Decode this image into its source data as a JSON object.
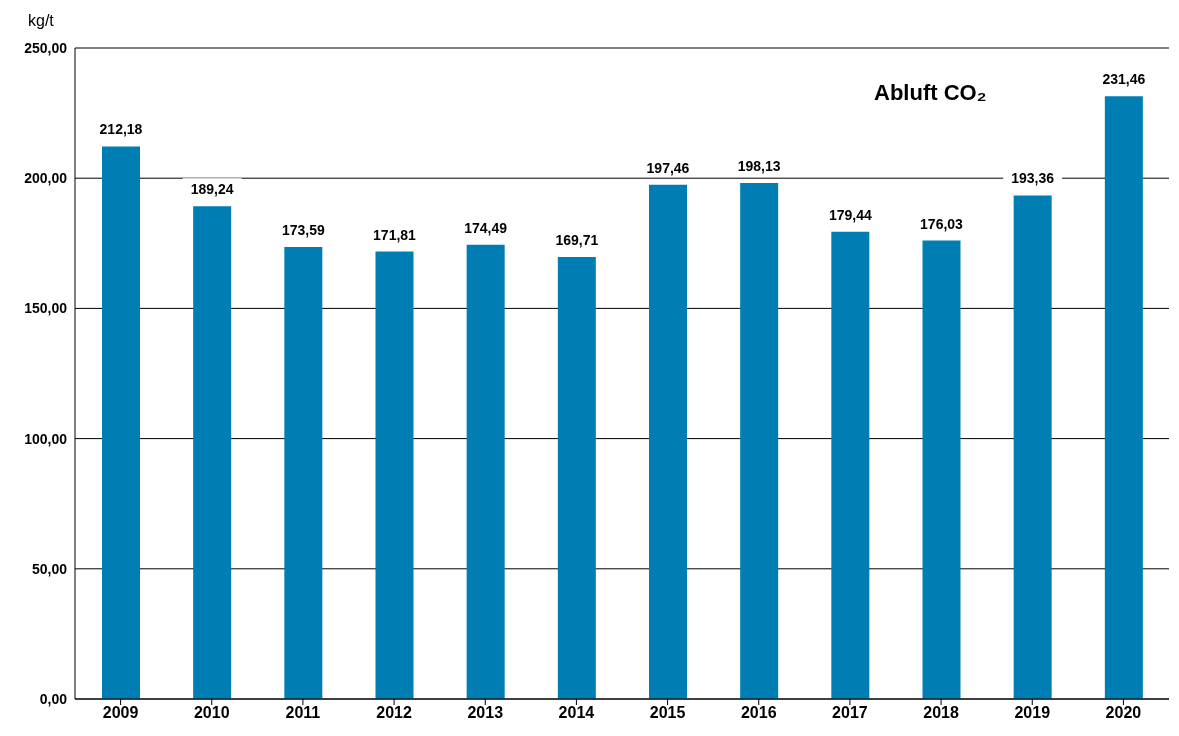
{
  "chart_data": {
    "type": "bar",
    "title": "Abluft CO₂",
    "ylabel": "kg/t",
    "categories": [
      "2009",
      "2010",
      "2011",
      "2012",
      "2013",
      "2014",
      "2015",
      "2016",
      "2017",
      "2018",
      "2019",
      "2020"
    ],
    "values": [
      212.18,
      189.24,
      173.59,
      171.81,
      174.49,
      169.71,
      197.46,
      198.13,
      179.44,
      176.03,
      193.36,
      231.46
    ],
    "value_labels": [
      "212,18",
      "189,24",
      "173,59",
      "171,81",
      "174,49",
      "169,71",
      "197,46",
      "198,13",
      "179,44",
      "176,03",
      "193,36",
      "231,46"
    ],
    "color": "#007db3",
    "ylim": [
      0,
      250
    ],
    "yticks": [
      {
        "value": 0,
        "label": "0,00"
      },
      {
        "value": 50,
        "label": "50,00"
      },
      {
        "value": 100,
        "label": "100,00"
      },
      {
        "value": 150,
        "label": "150,00"
      },
      {
        "value": 200,
        "label": "200,00"
      },
      {
        "value": 250,
        "label": "250,00"
      }
    ],
    "grid": "y"
  }
}
